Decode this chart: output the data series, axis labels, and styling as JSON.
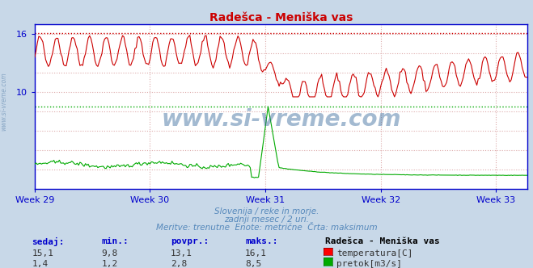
{
  "title": "Radešca - Meniška vas",
  "bg_color": "#c8d8e8",
  "plot_bg_color": "#ffffff",
  "grid_color": "#ddaaaa",
  "x_labels": [
    "Week 29",
    "Week 30",
    "Week 31",
    "Week 32",
    "Week 33"
  ],
  "x_tick_positions": [
    0,
    84,
    168,
    252,
    336
  ],
  "n_points": 360,
  "temp_color": "#cc0000",
  "flow_color": "#00aa00",
  "axis_color": "#0000cc",
  "border_color": "#0000cc",
  "temp_max_val": 16.1,
  "flow_max_val": 8.5,
  "flow_avg_val": 2.8,
  "ylim_min": 0,
  "ylim_max": 17,
  "ytick_vals": [
    10,
    16
  ],
  "footer_line1": "Slovenija / reke in morje.",
  "footer_line2": "zadnji mesec / 2 uri.",
  "footer_line3": "Meritve: trenutne  Enote: metrične  Črta: maksimum",
  "table_headers": [
    "sedaj:",
    "min.:",
    "povpr.:",
    "maks.:"
  ],
  "table_row1": [
    "15,1",
    "9,8",
    "13,1",
    "16,1"
  ],
  "table_row2": [
    "1,4",
    "1,2",
    "2,8",
    "8,5"
  ],
  "legend_title": "Radešca - Meniška vas",
  "legend_temp": "temperatura[C]",
  "legend_flow": "pretok[m3/s]",
  "watermark": "www.si-vreme.com",
  "watermark_color": "#336699",
  "left_watermark_color": "#7799bb",
  "footer_color": "#5588bb"
}
